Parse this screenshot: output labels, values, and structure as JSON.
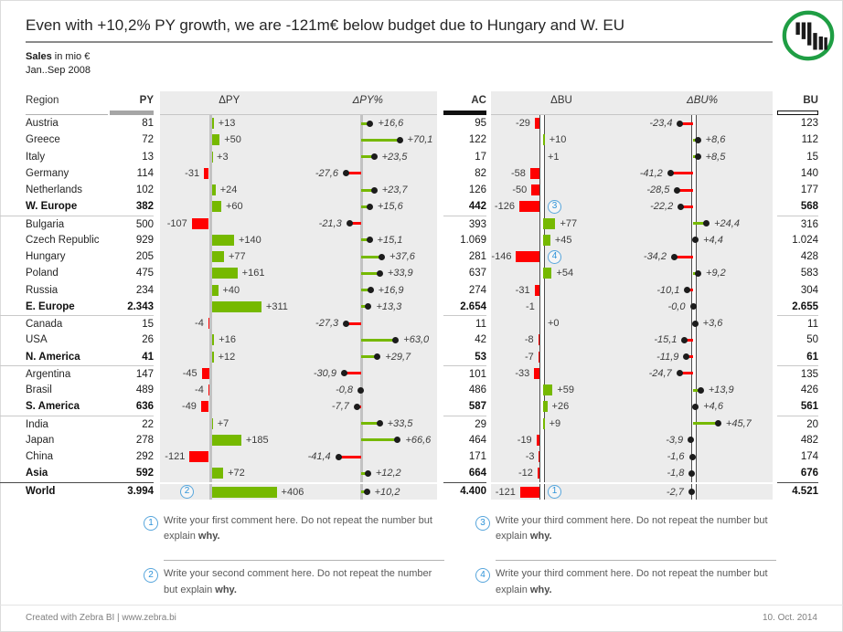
{
  "title": "Even with +10,2% PY growth, we are -121m€ below budget due to Hungary and W. EU",
  "subtitle_bold": "Sales",
  "subtitle_rest": " in mio €",
  "period": "Jan..Sep 2008",
  "icons": {
    "logo": "zebra-bi-logo"
  },
  "colors": {
    "positive": "#76b900",
    "negative": "#ff0000",
    "dot": "#1c1c1c",
    "panel_bg": "#ececec",
    "py_marker": "#a6a6a6",
    "ac_marker": "#111111",
    "comment_blue": "#4a9fd8",
    "logo_green": "#1f9e44"
  },
  "columns": {
    "region": "Region",
    "py": "PY",
    "dpy": "ΔPY",
    "dpy_pct": "ΔPY%",
    "ac": "AC",
    "dbu": "ΔBU",
    "dbu_pct": "ΔBU%",
    "bu": "BU"
  },
  "chart_data": {
    "type": "bar",
    "description": "Variance report: absolute bars (ΔPY, ΔBU) and percent lollipops (ΔPY%, ΔBU%) per region",
    "rows": [
      {
        "region": "Austria",
        "py": "81",
        "dpy": 13,
        "dpy_label": "+13",
        "dpy_pct": 16.6,
        "dpy_pct_label": "+16,6",
        "ac": "95",
        "dbu": -29,
        "dbu_label": "-29",
        "dbu_pct": -23.4,
        "dbu_pct_label": "-23,4",
        "bu": "123",
        "bold": false,
        "sep": null
      },
      {
        "region": "Greece",
        "py": "72",
        "dpy": 50,
        "dpy_label": "+50",
        "dpy_pct": 70.1,
        "dpy_pct_label": "+70,1",
        "ac": "122",
        "dbu": 10,
        "dbu_label": "+10",
        "dbu_pct": 8.6,
        "dbu_pct_label": "+8,6",
        "bu": "112",
        "bold": false,
        "sep": null
      },
      {
        "region": "Italy",
        "py": "13",
        "dpy": 3,
        "dpy_label": "+3",
        "dpy_pct": 23.5,
        "dpy_pct_label": "+23,5",
        "ac": "17",
        "dbu": 1,
        "dbu_label": "+1",
        "dbu_pct": 8.5,
        "dbu_pct_label": "+8,5",
        "bu": "15",
        "bold": false,
        "sep": null
      },
      {
        "region": "Germany",
        "py": "114",
        "dpy": -31,
        "dpy_label": "-31",
        "dpy_pct": -27.6,
        "dpy_pct_label": "-27,6",
        "ac": "82",
        "dbu": -58,
        "dbu_label": "-58",
        "dbu_pct": -41.2,
        "dbu_pct_label": "-41,2",
        "bu": "140",
        "bold": false,
        "sep": null
      },
      {
        "region": "Netherlands",
        "py": "102",
        "dpy": 24,
        "dpy_label": "+24",
        "dpy_pct": 23.7,
        "dpy_pct_label": "+23,7",
        "ac": "126",
        "dbu": -50,
        "dbu_label": "-50",
        "dbu_pct": -28.5,
        "dbu_pct_label": "-28,5",
        "bu": "177",
        "bold": false,
        "sep": null
      },
      {
        "region": "W. Europe",
        "py": "382",
        "dpy": 60,
        "dpy_label": "+60",
        "dpy_pct": 15.6,
        "dpy_pct_label": "+15,6",
        "ac": "442",
        "dbu": -126,
        "dbu_label": "-126",
        "dbu_pct": -22.2,
        "dbu_pct_label": "-22,2",
        "bu": "568",
        "bold": true,
        "sep": null,
        "marker_bu": "3"
      },
      {
        "region": "Bulgaria",
        "py": "500",
        "dpy": -107,
        "dpy_label": "-107",
        "dpy_pct": -21.3,
        "dpy_pct_label": "-21,3",
        "ac": "393",
        "dbu": 77,
        "dbu_label": "+77",
        "dbu_pct": 24.4,
        "dbu_pct_label": "+24,4",
        "bu": "316",
        "bold": false,
        "sep": "group"
      },
      {
        "region": "Czech Republic",
        "py": "929",
        "dpy": 140,
        "dpy_label": "+140",
        "dpy_pct": 15.1,
        "dpy_pct_label": "+15,1",
        "ac": "1.069",
        "dbu": 45,
        "dbu_label": "+45",
        "dbu_pct": 4.4,
        "dbu_pct_label": "+4,4",
        "bu": "1.024",
        "bold": false,
        "sep": null
      },
      {
        "region": "Hungary",
        "py": "205",
        "dpy": 77,
        "dpy_label": "+77",
        "dpy_pct": 37.6,
        "dpy_pct_label": "+37,6",
        "ac": "281",
        "dbu": -146,
        "dbu_label": "-146",
        "dbu_pct": -34.2,
        "dbu_pct_label": "-34,2",
        "bu": "428",
        "bold": false,
        "sep": null,
        "marker_bu": "4"
      },
      {
        "region": "Poland",
        "py": "475",
        "dpy": 161,
        "dpy_label": "+161",
        "dpy_pct": 33.9,
        "dpy_pct_label": "+33,9",
        "ac": "637",
        "dbu": 54,
        "dbu_label": "+54",
        "dbu_pct": 9.2,
        "dbu_pct_label": "+9,2",
        "bu": "583",
        "bold": false,
        "sep": null
      },
      {
        "region": "Russia",
        "py": "234",
        "dpy": 40,
        "dpy_label": "+40",
        "dpy_pct": 16.9,
        "dpy_pct_label": "+16,9",
        "ac": "274",
        "dbu": -31,
        "dbu_label": "-31",
        "dbu_pct": -10.1,
        "dbu_pct_label": "-10,1",
        "bu": "304",
        "bold": false,
        "sep": null
      },
      {
        "region": "E. Europe",
        "py": "2.343",
        "dpy": 311,
        "dpy_label": "+311",
        "dpy_pct": 13.3,
        "dpy_pct_label": "+13,3",
        "ac": "2.654",
        "dbu": -1,
        "dbu_label": "-1",
        "dbu_pct": -0.0,
        "dbu_pct_label": "-0,0",
        "bu": "2.655",
        "bold": true,
        "sep": null
      },
      {
        "region": "Canada",
        "py": "15",
        "dpy": -4,
        "dpy_label": "-4",
        "dpy_pct": -27.3,
        "dpy_pct_label": "-27,3",
        "ac": "11",
        "dbu": 0,
        "dbu_label": "+0",
        "dbu_pct": 3.6,
        "dbu_pct_label": "+3,6",
        "bu": "11",
        "bold": false,
        "sep": "group"
      },
      {
        "region": "USA",
        "py": "26",
        "dpy": 16,
        "dpy_label": "+16",
        "dpy_pct": 63.0,
        "dpy_pct_label": "+63,0",
        "ac": "42",
        "dbu": -8,
        "dbu_label": "-8",
        "dbu_pct": -15.1,
        "dbu_pct_label": "-15,1",
        "bu": "50",
        "bold": false,
        "sep": null
      },
      {
        "region": "N. America",
        "py": "41",
        "dpy": 12,
        "dpy_label": "+12",
        "dpy_pct": 29.7,
        "dpy_pct_label": "+29,7",
        "ac": "53",
        "dbu": -7,
        "dbu_label": "-7",
        "dbu_pct": -11.9,
        "dbu_pct_label": "-11,9",
        "bu": "61",
        "bold": true,
        "sep": null
      },
      {
        "region": "Argentina",
        "py": "147",
        "dpy": -45,
        "dpy_label": "-45",
        "dpy_pct": -30.9,
        "dpy_pct_label": "-30,9",
        "ac": "101",
        "dbu": -33,
        "dbu_label": "-33",
        "dbu_pct": -24.7,
        "dbu_pct_label": "-24,7",
        "bu": "135",
        "bold": false,
        "sep": "group"
      },
      {
        "region": "Brasil",
        "py": "489",
        "dpy": -4,
        "dpy_label": "-4",
        "dpy_pct": -0.8,
        "dpy_pct_label": "-0,8",
        "ac": "486",
        "dbu": 59,
        "dbu_label": "+59",
        "dbu_pct": 13.9,
        "dbu_pct_label": "+13,9",
        "bu": "426",
        "bold": false,
        "sep": null
      },
      {
        "region": "S. America",
        "py": "636",
        "dpy": -49,
        "dpy_label": "-49",
        "dpy_pct": -7.7,
        "dpy_pct_label": "-7,7",
        "ac": "587",
        "dbu": 26,
        "dbu_label": "+26",
        "dbu_pct": 4.6,
        "dbu_pct_label": "+4,6",
        "bu": "561",
        "bold": true,
        "sep": null
      },
      {
        "region": "India",
        "py": "22",
        "dpy": 7,
        "dpy_label": "+7",
        "dpy_pct": 33.5,
        "dpy_pct_label": "+33,5",
        "ac": "29",
        "dbu": 9,
        "dbu_label": "+9",
        "dbu_pct": 45.7,
        "dbu_pct_label": "+45,7",
        "bu": "20",
        "bold": false,
        "sep": "group"
      },
      {
        "region": "Japan",
        "py": "278",
        "dpy": 185,
        "dpy_label": "+185",
        "dpy_pct": 66.6,
        "dpy_pct_label": "+66,6",
        "ac": "464",
        "dbu": -19,
        "dbu_label": "-19",
        "dbu_pct": -3.9,
        "dbu_pct_label": "-3,9",
        "bu": "482",
        "bold": false,
        "sep": null
      },
      {
        "region": "China",
        "py": "292",
        "dpy": -121,
        "dpy_label": "-121",
        "dpy_pct": -41.4,
        "dpy_pct_label": "-41,4",
        "ac": "171",
        "dbu": -3,
        "dbu_label": "-3",
        "dbu_pct": -1.6,
        "dbu_pct_label": "-1,6",
        "bu": "174",
        "bold": false,
        "sep": null
      },
      {
        "region": "Asia",
        "py": "592",
        "dpy": 72,
        "dpy_label": "+72",
        "dpy_pct": 12.2,
        "dpy_pct_label": "+12,2",
        "ac": "664",
        "dbu": -12,
        "dbu_label": "-12",
        "dbu_pct": -1.8,
        "dbu_pct_label": "-1,8",
        "bu": "676",
        "bold": true,
        "sep": null
      },
      {
        "region": "World",
        "py": "3.994",
        "dpy": 406,
        "dpy_label": "+406",
        "dpy_pct": 10.2,
        "dpy_pct_label": "+10,2",
        "ac": "4.400",
        "dbu": -121,
        "dbu_label": "-121",
        "dbu_pct": -2.7,
        "dbu_pct_label": "-2,7",
        "bu": "4.521",
        "bold": true,
        "sep": "world",
        "marker_py": "2",
        "marker_bu": "1"
      }
    ]
  },
  "comments": [
    {
      "num": "1",
      "text": "Write your first comment here. Do not repeat the number but explain ",
      "bold": "why."
    },
    {
      "num": "2",
      "text": "Write your second comment here. Do not repeat the number but explain ",
      "bold": "why."
    },
    {
      "num": "3",
      "text": "Write your third comment here. Do not repeat the number but explain ",
      "bold": "why."
    },
    {
      "num": "4",
      "text": "Write your third comment here. Do not repeat the number but explain ",
      "bold": "why."
    }
  ],
  "footer": {
    "left": "Created with Zebra BI | www.zebra.bi",
    "right": "10. Oct. 2014"
  }
}
